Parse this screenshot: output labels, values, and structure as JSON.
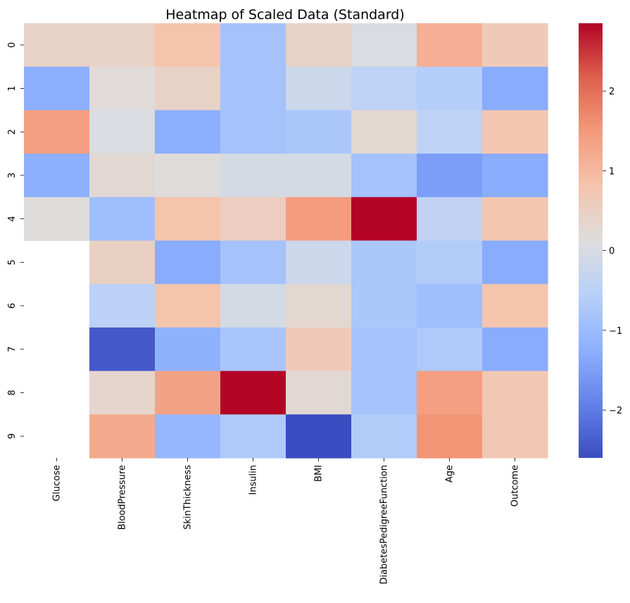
{
  "chart_data": {
    "type": "heatmap",
    "title": "Heatmap of Scaled Data (Standard)",
    "xlabel": "",
    "ylabel": "",
    "columns": [
      "Glucose",
      "BloodPressure",
      "SkinThickness",
      "Insulin",
      "BMI",
      "DiabetesPedigreeFunction",
      "Age",
      "Outcome"
    ],
    "rows": [
      "0",
      "1",
      "2",
      "3",
      "4",
      "5",
      "6",
      "7",
      "8",
      "9"
    ],
    "values": [
      [
        0.45,
        0.45,
        0.8,
        -0.85,
        0.45,
        0.05,
        1.15,
        0.65
      ],
      [
        -1.25,
        0.2,
        0.45,
        -0.85,
        -0.2,
        -0.45,
        -0.6,
        -1.3
      ],
      [
        1.4,
        0.05,
        -1.25,
        -0.85,
        -0.75,
        0.3,
        -0.45,
        0.75
      ],
      [
        -1.25,
        0.25,
        0.15,
        -0.05,
        -0.05,
        -0.85,
        -1.5,
        -1.3
      ],
      [
        0.15,
        -0.95,
        0.8,
        0.55,
        1.45,
        2.85,
        -0.4,
        0.75
      ],
      [
        null,
        0.5,
        -1.3,
        -0.85,
        -0.2,
        -0.75,
        -0.65,
        -1.3
      ],
      [
        null,
        -0.5,
        0.8,
        -0.05,
        0.3,
        -0.75,
        -0.95,
        0.8
      ],
      [
        null,
        -2.45,
        -1.2,
        -0.8,
        0.65,
        -0.85,
        -0.7,
        -1.3
      ],
      [
        null,
        0.35,
        1.35,
        2.85,
        0.25,
        -0.85,
        1.4,
        0.7
      ],
      [
        null,
        1.25,
        -1.1,
        -0.7,
        -2.6,
        -0.65,
        1.55,
        0.7
      ]
    ],
    "colormap": "coolwarm",
    "vmin": -2.6,
    "vmax": 2.85,
    "colorbar_ticks": [
      -2,
      -1,
      0,
      1,
      2
    ],
    "colorbar_tick_labels": [
      "−2",
      "−1",
      "0",
      "1",
      "2"
    ]
  }
}
